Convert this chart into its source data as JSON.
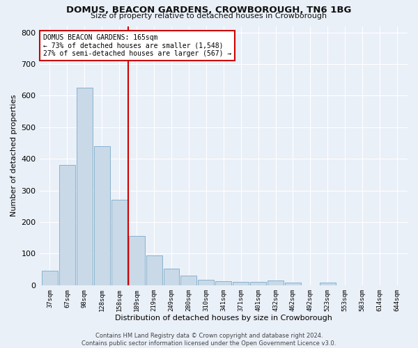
{
  "title1": "DOMUS, BEACON GARDENS, CROWBOROUGH, TN6 1BG",
  "title2": "Size of property relative to detached houses in Crowborough",
  "xlabel": "Distribution of detached houses by size in Crowborough",
  "ylabel": "Number of detached properties",
  "bar_color": "#c9d9e8",
  "bar_edge_color": "#7aaac8",
  "categories": [
    "37sqm",
    "67sqm",
    "98sqm",
    "128sqm",
    "158sqm",
    "189sqm",
    "219sqm",
    "249sqm",
    "280sqm",
    "310sqm",
    "341sqm",
    "371sqm",
    "401sqm",
    "432sqm",
    "462sqm",
    "492sqm",
    "523sqm",
    "553sqm",
    "583sqm",
    "614sqm",
    "644sqm"
  ],
  "values": [
    45,
    380,
    625,
    440,
    270,
    155,
    95,
    52,
    30,
    18,
    12,
    11,
    11,
    14,
    8,
    0,
    8,
    0,
    0,
    0,
    0
  ],
  "ylim": [
    0,
    820
  ],
  "yticks": [
    0,
    100,
    200,
    300,
    400,
    500,
    600,
    700,
    800
  ],
  "vline_color": "#cc0000",
  "annotation_text": "DOMUS BEACON GARDENS: 165sqm\n← 73% of detached houses are smaller (1,548)\n27% of semi-detached houses are larger (567) →",
  "annotation_box_color": "#ffffff",
  "annotation_box_edge": "#cc0000",
  "footer": "Contains HM Land Registry data © Crown copyright and database right 2024.\nContains public sector information licensed under the Open Government Licence v3.0.",
  "bg_color": "#eaf0f8",
  "grid_color": "#ffffff"
}
